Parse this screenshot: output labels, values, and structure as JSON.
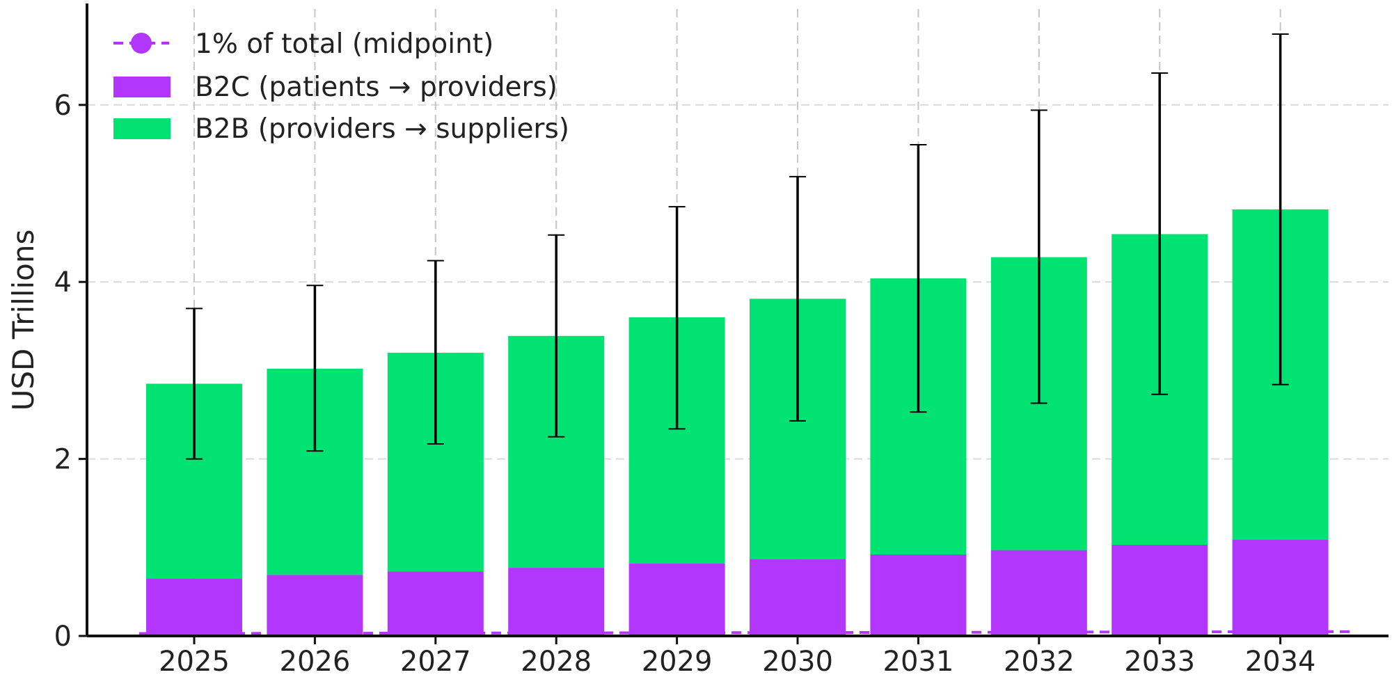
{
  "chart_data": {
    "type": "bar",
    "stacked": true,
    "title": "",
    "xlabel": "",
    "ylabel": "USD Trillions",
    "ylim": [
      0,
      7.2
    ],
    "yticks": [
      0,
      2,
      4,
      6
    ],
    "ytick_labels": [
      "0",
      "2",
      "4",
      "6"
    ],
    "grid": true,
    "legend_position": "top-left",
    "categories": [
      "2025",
      "2026",
      "2027",
      "2028",
      "2029",
      "2030",
      "2031",
      "2032",
      "2033",
      "2034"
    ],
    "series": [
      {
        "name": "B2C (patients → providers)",
        "color": "#b236fb",
        "values": [
          0.65,
          0.69,
          0.73,
          0.77,
          0.82,
          0.87,
          0.92,
          0.97,
          1.03,
          1.09
        ]
      },
      {
        "name": "B2B (providers → suppliers)",
        "color": "#00e272",
        "values": [
          2.2,
          2.33,
          2.47,
          2.62,
          2.78,
          2.94,
          3.12,
          3.31,
          3.51,
          3.73
        ]
      }
    ],
    "error_bars": {
      "color": "#000000",
      "low": [
        2.0,
        2.09,
        2.17,
        2.25,
        2.34,
        2.43,
        2.53,
        2.63,
        2.73,
        2.84
      ],
      "high": [
        3.7,
        3.96,
        4.24,
        4.53,
        4.85,
        5.19,
        5.55,
        5.94,
        6.36,
        6.8
      ]
    },
    "line_series": {
      "name": "1% of total (midpoint)",
      "color": "#b236fb",
      "style": "dashed",
      "marker": "circle",
      "values": [
        0.028,
        0.03,
        0.032,
        0.034,
        0.036,
        0.038,
        0.04,
        0.043,
        0.045,
        0.048
      ]
    }
  }
}
